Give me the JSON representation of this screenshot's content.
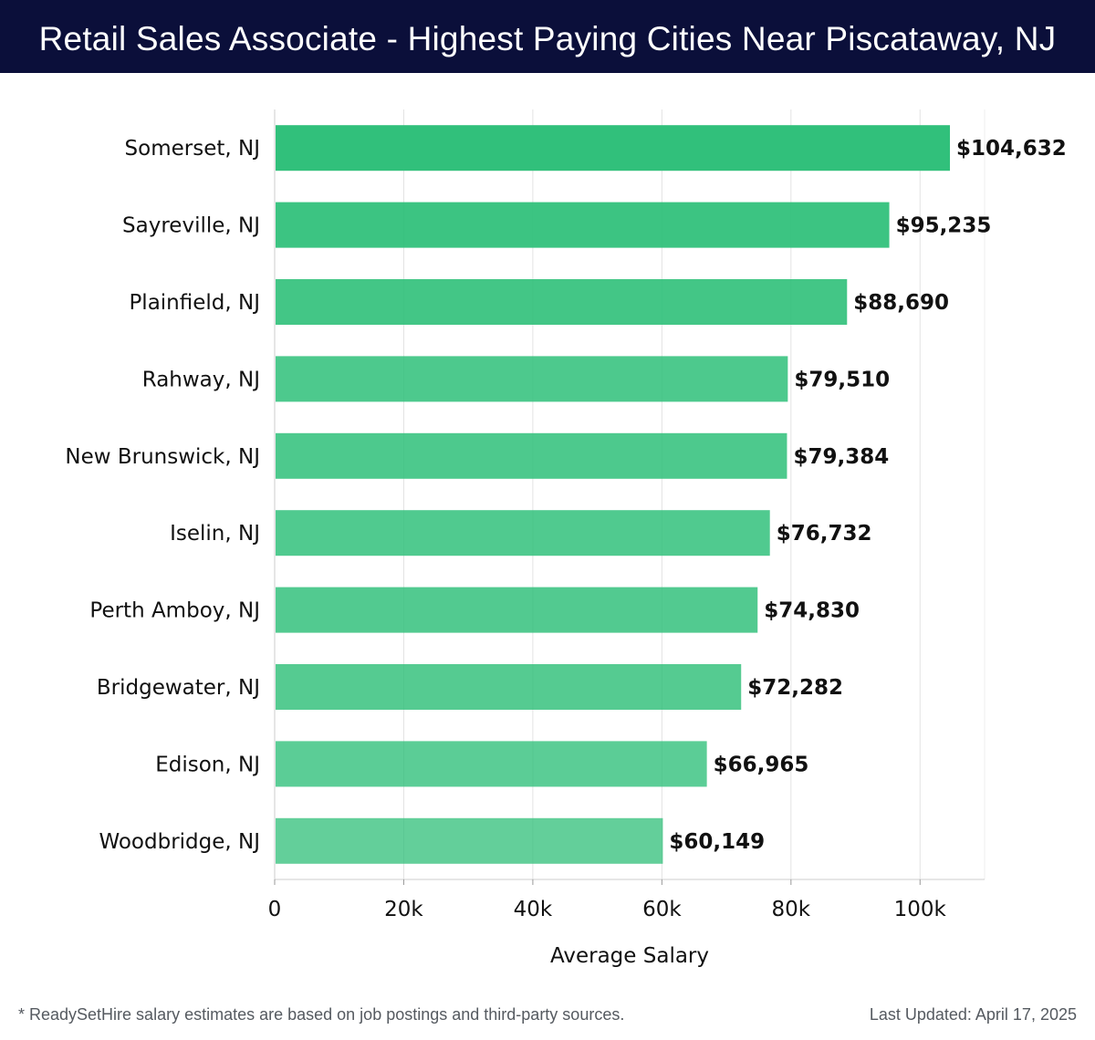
{
  "header": {
    "title": "Retail Sales Associate - Highest Paying Cities Near Piscataway, NJ"
  },
  "chart_data": {
    "type": "bar",
    "orientation": "horizontal",
    "title": "Retail Sales Associate - Highest Paying Cities Near Piscataway, NJ",
    "xlabel": "Average Salary",
    "ylabel": "",
    "xlim": [
      0,
      110000
    ],
    "xticks": [
      0,
      20000,
      40000,
      60000,
      80000,
      100000
    ],
    "xtick_labels": [
      "0",
      "20k",
      "40k",
      "60k",
      "80k",
      "100k"
    ],
    "grid": "vertical",
    "categories": [
      "Somerset, NJ",
      "Sayreville, NJ",
      "Plainfield, NJ",
      "Rahway, NJ",
      "New Brunswick, NJ",
      "Iselin, NJ",
      "Perth Amboy, NJ",
      "Bridgewater, NJ",
      "Edison, NJ",
      "Woodbridge, NJ"
    ],
    "values": [
      104632,
      95235,
      88690,
      79510,
      79384,
      76732,
      74830,
      72282,
      66965,
      60149
    ],
    "value_labels": [
      "$104,632",
      "$95,235",
      "$88,690",
      "$79,510",
      "$79,384",
      "$76,732",
      "$74,830",
      "$72,282",
      "$66,965",
      "$60,149"
    ],
    "bar_color": "#2dbf78"
  },
  "footer": {
    "note": "* ReadySetHire salary estimates are based on job postings and third-party sources.",
    "updated": "Last Updated: April 17, 2025"
  }
}
